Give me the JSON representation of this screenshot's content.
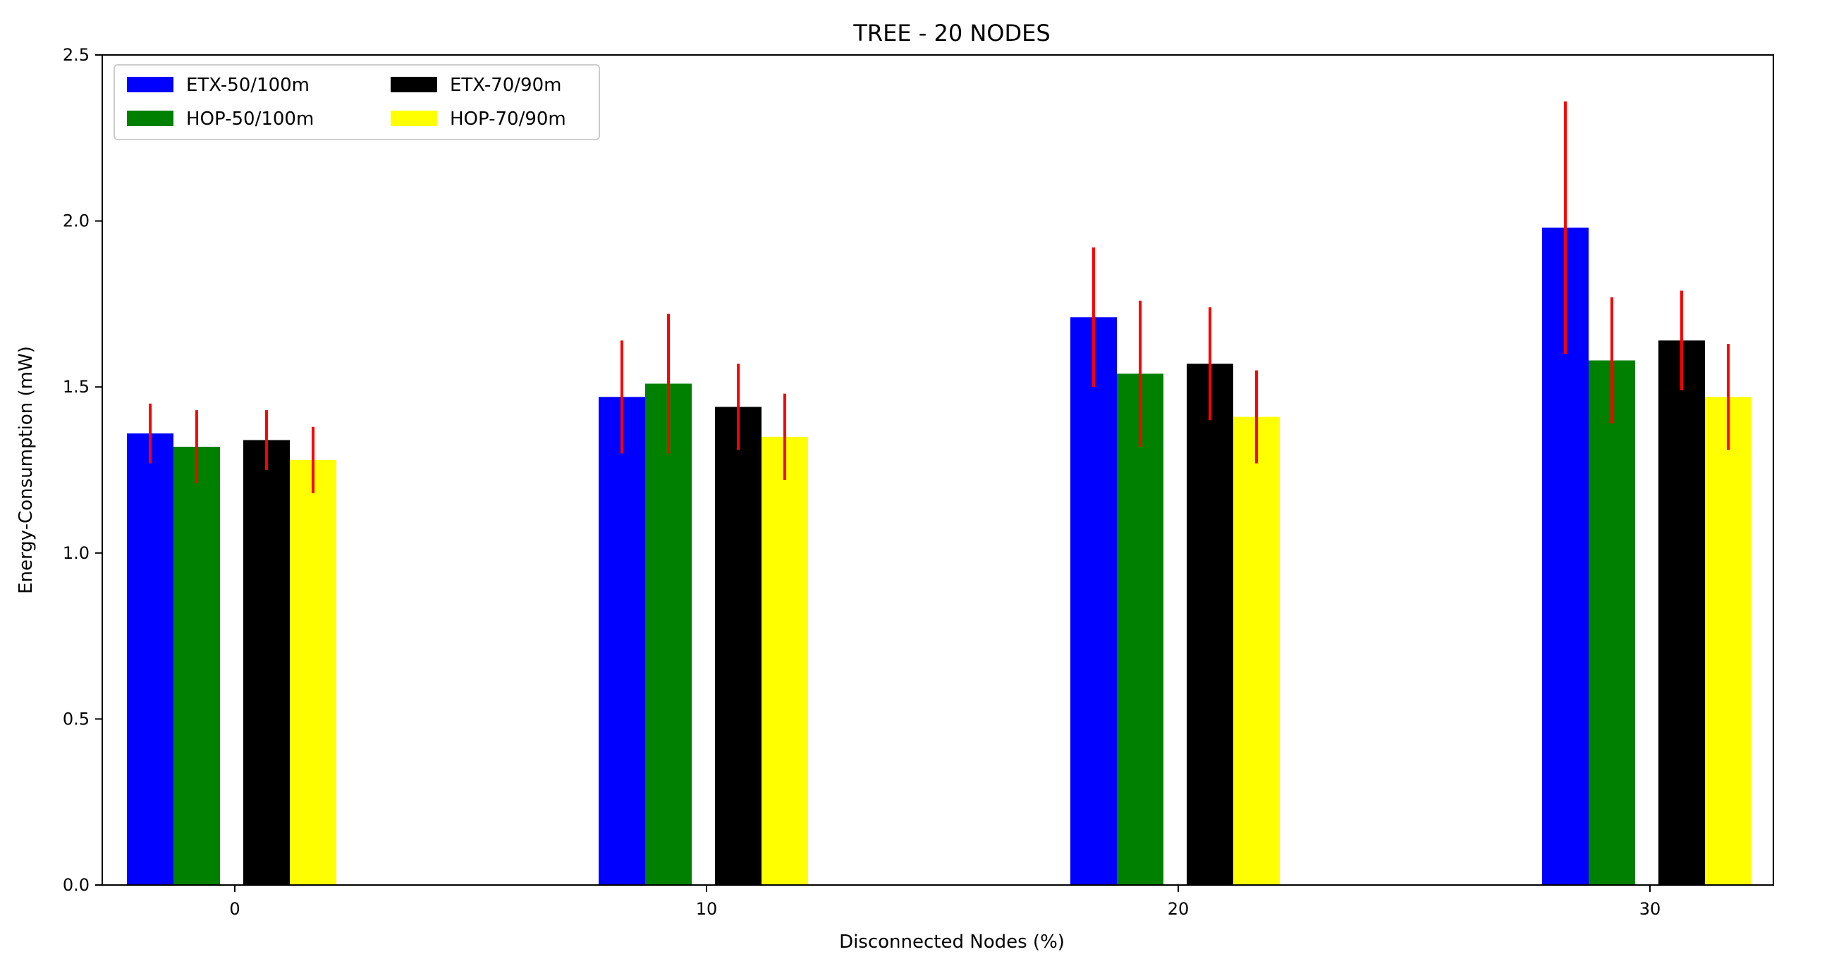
{
  "chart_data": {
    "type": "bar",
    "title": "TREE - 20 NODES",
    "xlabel": "Disconnected Nodes (%)",
    "ylabel": "Energy-Consumption (mW)",
    "categories": [
      "0",
      "10",
      "20",
      "30"
    ],
    "ylim": [
      0,
      2.5
    ],
    "yticks": [
      "0.0",
      "0.5",
      "1.0",
      "1.5",
      "2.0",
      "2.5"
    ],
    "grid": false,
    "legend_position": "top-left",
    "error_bar_color": "#ff0000",
    "series": [
      {
        "name": "ETX-50/100m",
        "color": "#0000ff",
        "values": [
          1.36,
          1.47,
          1.71,
          1.98
        ],
        "errors": [
          0.09,
          0.17,
          0.21,
          0.38
        ]
      },
      {
        "name": "HOP-50/100m",
        "color": "#008000",
        "values": [
          1.32,
          1.51,
          1.54,
          1.58
        ],
        "errors": [
          0.11,
          0.21,
          0.22,
          0.19
        ]
      },
      {
        "name": "ETX-70/90m",
        "color": "#000000",
        "values": [
          1.34,
          1.44,
          1.57,
          1.64
        ],
        "errors": [
          0.09,
          0.13,
          0.17,
          0.15
        ]
      },
      {
        "name": "HOP-70/90m",
        "color": "#ffff00",
        "values": [
          1.28,
          1.35,
          1.41,
          1.47
        ],
        "errors": [
          0.1,
          0.13,
          0.14,
          0.16
        ]
      }
    ]
  }
}
